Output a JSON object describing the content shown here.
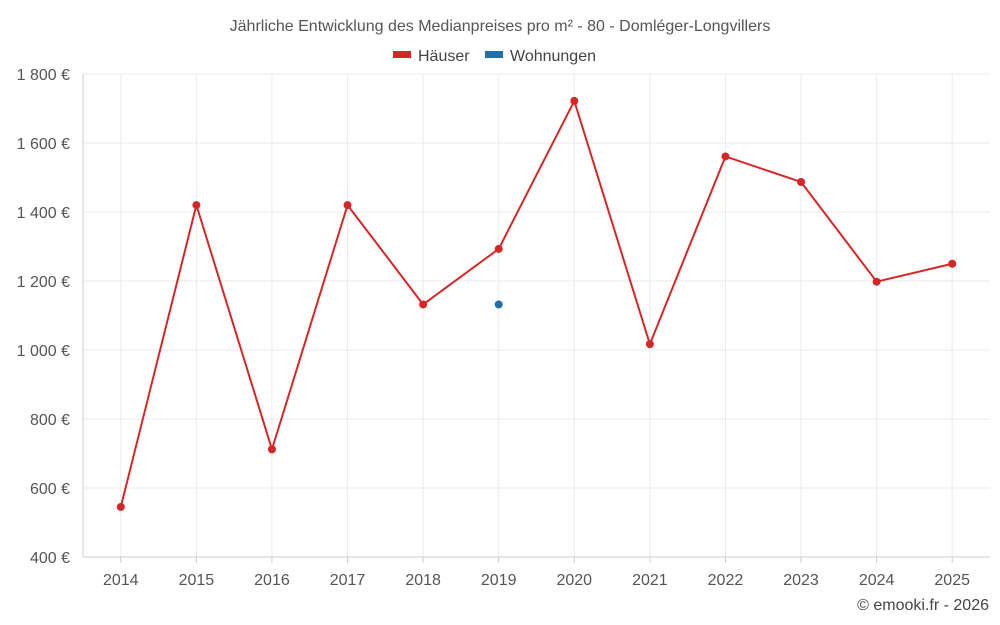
{
  "chart_data": {
    "type": "line",
    "title": "Jährliche Entwicklung des Medianpreises pro m² - 80 - Domléger-Longvillers",
    "categories": [
      "2014",
      "2015",
      "2016",
      "2017",
      "2018",
      "2019",
      "2020",
      "2021",
      "2022",
      "2023",
      "2024",
      "2025"
    ],
    "series": [
      {
        "name": "Häuser",
        "color": "#d62728",
        "values": [
          545,
          1420,
          712,
          1420,
          1132,
          1293,
          1722,
          1017,
          1561,
          1487,
          1198,
          1250
        ]
      },
      {
        "name": "Wohnungen",
        "color": "#1f6fa8",
        "values": [
          null,
          null,
          null,
          null,
          null,
          1132,
          null,
          null,
          null,
          null,
          null,
          null
        ]
      }
    ],
    "ylim": [
      400,
      1800
    ],
    "yticks": [
      400,
      600,
      800,
      1000,
      1200,
      1400,
      1600,
      1800
    ],
    "ytick_labels": [
      "400 €",
      "600 €",
      "800 €",
      "1 000 €",
      "1 200 €",
      "1 400 €",
      "1 600 €",
      "1 800 €"
    ],
    "xlabel": "",
    "ylabel": "",
    "grid": true,
    "legend_position": "top-center"
  },
  "credit": "© emooki.fr - 2026"
}
